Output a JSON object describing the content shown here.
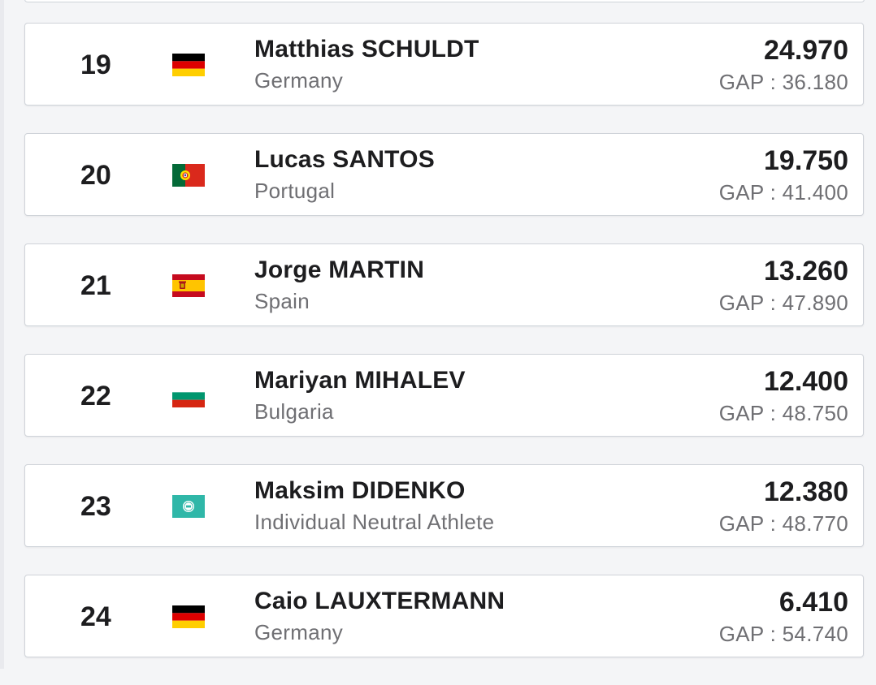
{
  "gap_prefix": "GAP : ",
  "results": [
    {
      "rank": "19",
      "name": "Matthias SCHULDT",
      "country": "Germany",
      "flag": "germany-flag-icon",
      "score": "24.970",
      "gap": "GAP : 36.180"
    },
    {
      "rank": "20",
      "name": "Lucas SANTOS",
      "country": "Portugal",
      "flag": "portugal-flag-icon",
      "score": "19.750",
      "gap": "GAP : 41.400"
    },
    {
      "rank": "21",
      "name": "Jorge MARTIN",
      "country": "Spain",
      "flag": "spain-flag-icon",
      "score": "13.260",
      "gap": "GAP : 47.890"
    },
    {
      "rank": "22",
      "name": "Mariyan MIHALEV",
      "country": "Bulgaria",
      "flag": "bulgaria-flag-icon",
      "score": "12.400",
      "gap": "GAP : 48.750"
    },
    {
      "rank": "23",
      "name": "Maksim DIDENKO",
      "country": "Individual Neutral Athlete",
      "flag": "neutral-athlete-flag-icon",
      "score": "12.380",
      "gap": "GAP : 48.770"
    },
    {
      "rank": "24",
      "name": "Caio LAUXTERMANN",
      "country": "Germany",
      "flag": "germany-flag-icon",
      "score": "6.410",
      "gap": "GAP : 54.740"
    }
  ],
  "colors": {
    "card_border": "#cfd3d9",
    "text_primary": "#1d1d1f",
    "text_secondary": "#6f6f73"
  }
}
